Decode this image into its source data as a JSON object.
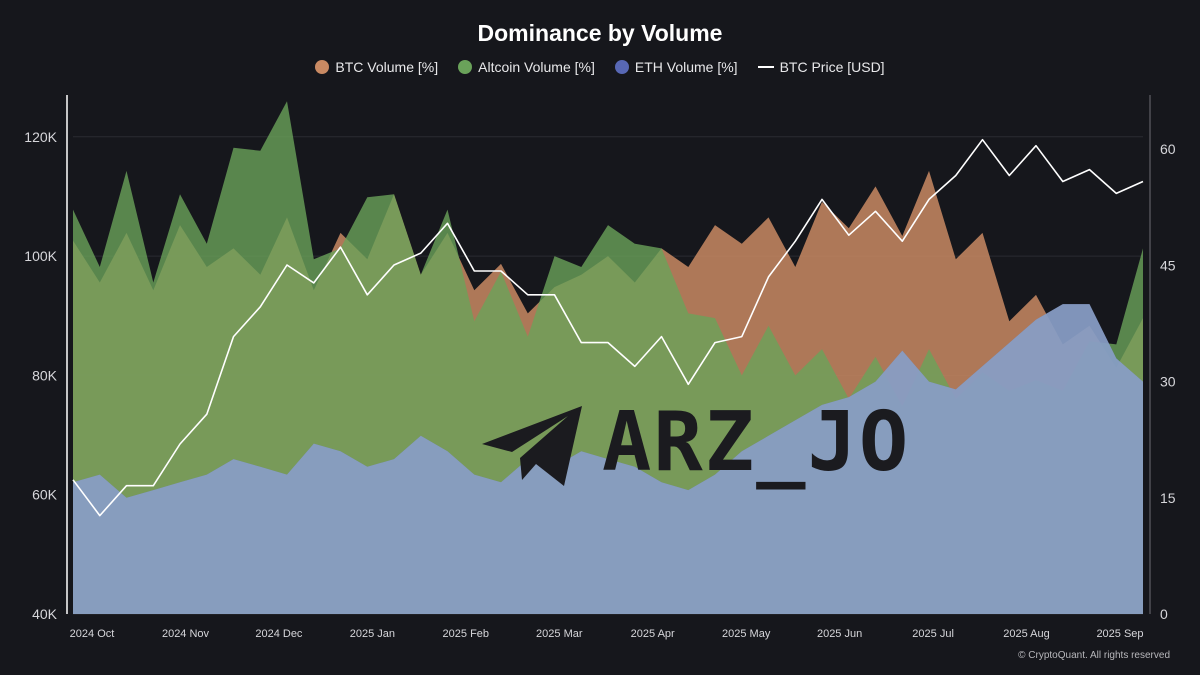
{
  "chart_data": {
    "type": "area",
    "title": "Dominance by Volume",
    "legend_placement": "top-center",
    "grid": true,
    "x_labels": [
      "2024 Oct",
      "2024 Nov",
      "2024 Dec",
      "2025 Jan",
      "2025 Feb",
      "2025 Mar",
      "2025 Apr",
      "2025 May",
      "2025 Jun",
      "2025 Jul",
      "2025 Aug",
      "2025 Sep"
    ],
    "y_left": {
      "label": "",
      "ticks": [
        "40K",
        "60K",
        "80K",
        "100K",
        "120K"
      ],
      "range": [
        40000,
        127000
      ]
    },
    "y_right": {
      "label": "",
      "ticks": [
        "0",
        "15",
        "30",
        "45",
        "60"
      ],
      "range": [
        0,
        67
      ]
    },
    "series": [
      {
        "name": "BTC Volume [%]",
        "color": "#c98a63",
        "axis": "right",
        "values": [
          46,
          45,
          47,
          44,
          48,
          47,
          45,
          46,
          49,
          44,
          47,
          48,
          52,
          46,
          47,
          44,
          43,
          41,
          40,
          46,
          44,
          45,
          45,
          47,
          48,
          50,
          49,
          47,
          51,
          52,
          53,
          51,
          55,
          48,
          47,
          40,
          39,
          37,
          35,
          34,
          36
        ]
      },
      {
        "name": "Altcoin Volume [%]",
        "color": "#6aa25a",
        "axis": "right",
        "values": [
          50,
          47,
          55,
          45,
          52,
          50,
          58,
          62,
          64,
          48,
          45,
          56,
          52,
          46,
          50,
          40,
          42,
          38,
          44,
          47,
          48,
          50,
          45,
          41,
          36,
          33,
          35,
          33,
          32,
          30,
          31,
          29,
          32,
          30,
          29,
          31,
          28,
          31,
          33,
          37,
          45
        ]
      },
      {
        "name": "ETH Volume [%]",
        "color": "#5868b5",
        "axis": "right",
        "values": [
          17,
          18,
          15,
          16,
          17,
          18,
          20,
          19,
          18,
          22,
          21,
          19,
          20,
          23,
          21,
          18,
          17,
          20,
          19,
          21,
          20,
          19,
          17,
          16,
          18,
          21,
          23,
          25,
          27,
          28,
          30,
          34,
          30,
          29,
          32,
          35,
          38,
          40,
          40,
          33,
          30
        ]
      },
      {
        "name": "BTC Price [USD]",
        "color": "#ffffff",
        "axis": "left",
        "values": [
          61000,
          58000,
          60000,
          63000,
          67000,
          75000,
          85000,
          93000,
          97000,
          97000,
          100000,
          95000,
          97000,
          102000,
          104000,
          99000,
          96000,
          95000,
          92000,
          87000,
          84000,
          83000,
          85000,
          80000,
          84000,
          88000,
          95000,
          104000,
          108000,
          105000,
          106000,
          104000,
          108000,
          115000,
          118000,
          115000,
          117000,
          114000,
          113000,
          112000,
          111000
        ]
      }
    ]
  },
  "copyright": "© CryptoQuant. All rights reserved",
  "watermark": {
    "text": "ARZ_JO",
    "icon": "telegram-plane-icon"
  }
}
